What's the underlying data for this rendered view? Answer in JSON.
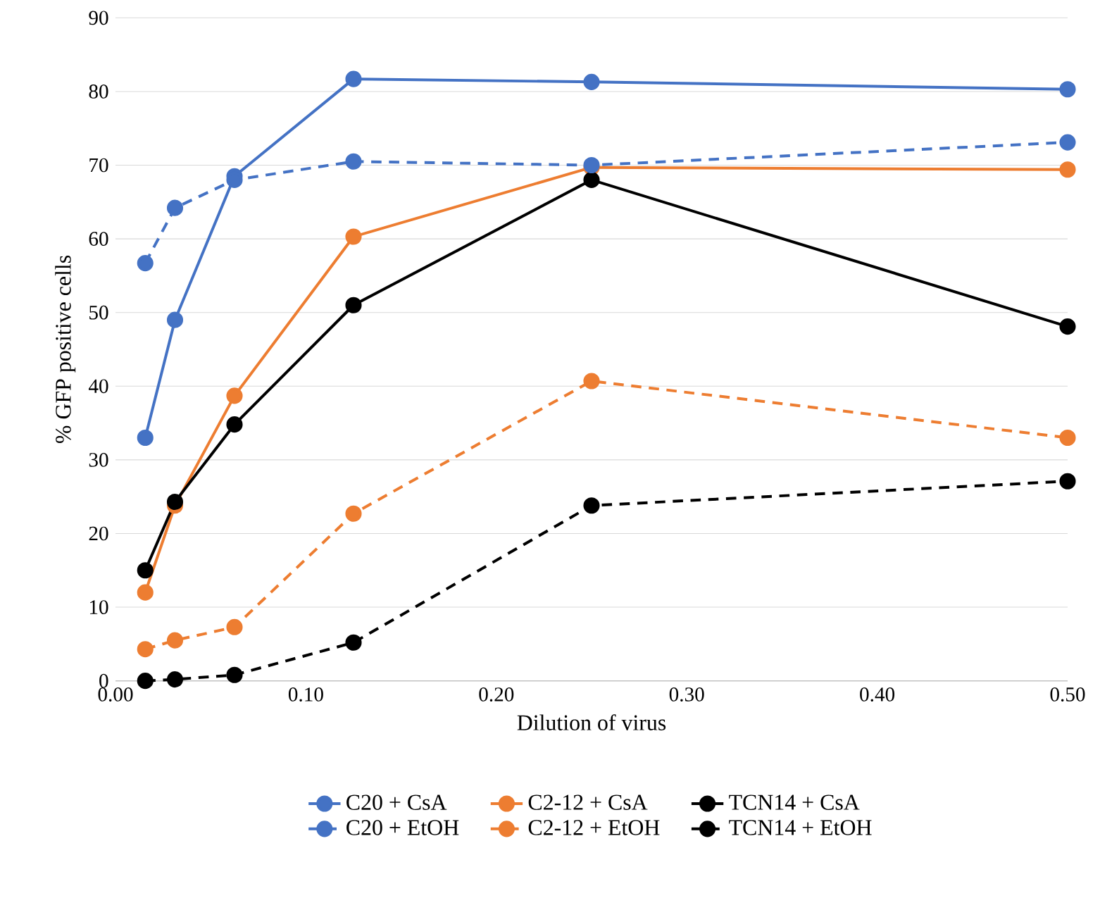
{
  "chart_data": {
    "type": "line",
    "xlabel": "Dilution of virus",
    "ylabel": "% GFP positive cells",
    "x": [
      0.015625,
      0.03125,
      0.0625,
      0.125,
      0.25,
      0.5
    ],
    "series": [
      {
        "name": "C20 + CsA",
        "color": "#4472c4",
        "line_style": "solid",
        "values": [
          33,
          49,
          68.5,
          81.7,
          81.3,
          80.3
        ]
      },
      {
        "name": "C2-12 + CsA",
        "color": "#ed7d31",
        "line_style": "solid",
        "values": [
          12,
          23.8,
          38.7,
          60.3,
          69.7,
          69.4
        ]
      },
      {
        "name": "TCN14 + CsA",
        "color": "#000000",
        "line_style": "solid",
        "values": [
          15,
          24.3,
          34.8,
          51,
          68,
          48.1
        ]
      },
      {
        "name": "C20 + EtOH",
        "color": "#4472c4",
        "line_style": "dashed",
        "values": [
          56.7,
          64.2,
          68,
          70.5,
          70,
          73.1
        ]
      },
      {
        "name": "C2-12 + EtOH",
        "color": "#ed7d31",
        "line_style": "dashed",
        "values": [
          4.3,
          5.5,
          7.3,
          22.7,
          40.7,
          33
        ]
      },
      {
        "name": "TCN14 + EtOH",
        "color": "#000000",
        "line_style": "dashed",
        "values": [
          0,
          0.2,
          0.8,
          5.2,
          23.8,
          27.1
        ]
      }
    ],
    "xlim": [
      0,
      0.5
    ],
    "xticks": [
      {
        "value": 0,
        "label": "0.00"
      },
      {
        "value": 0.1,
        "label": "0.10"
      },
      {
        "value": 0.2,
        "label": "0.20"
      },
      {
        "value": 0.3,
        "label": "0.30"
      },
      {
        "value": 0.4,
        "label": "0.40"
      },
      {
        "value": 0.5,
        "label": "0.50"
      }
    ],
    "ylim": [
      0,
      90
    ],
    "yticks": [
      0,
      10,
      20,
      30,
      40,
      50,
      60,
      70,
      80,
      90
    ],
    "grid": "y",
    "legend": "bottom",
    "marker": "circle"
  }
}
